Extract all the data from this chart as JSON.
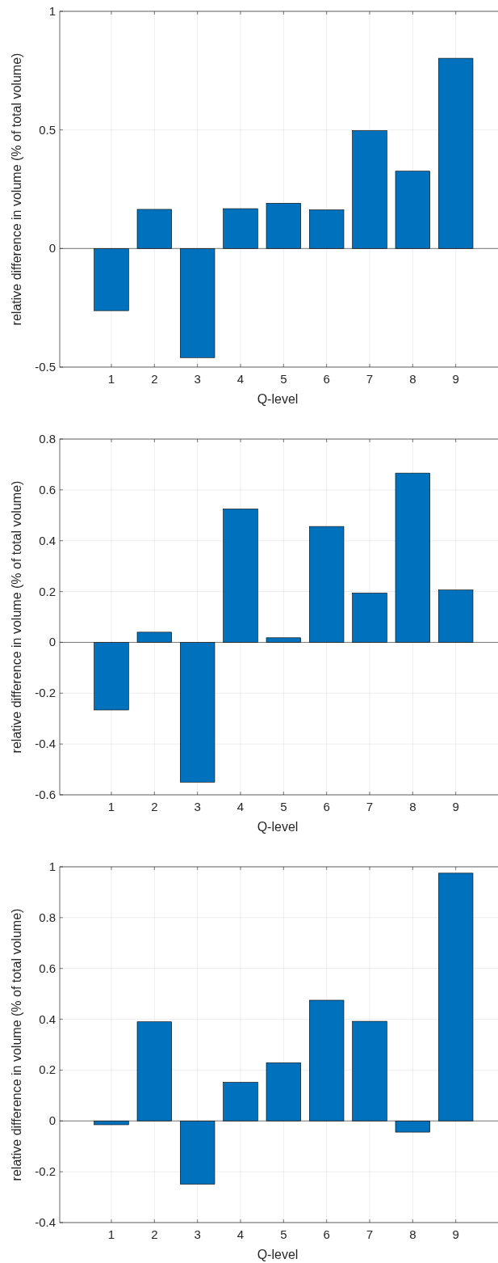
{
  "chart_data": [
    {
      "type": "bar",
      "xlabel": "Q-level",
      "ylabel": "relative difference in volume (% of total volume)",
      "x": [
        1,
        2,
        3,
        4,
        5,
        6,
        7,
        8,
        9
      ],
      "values": [
        -0.262,
        0.165,
        -0.46,
        0.168,
        0.191,
        0.163,
        0.497,
        0.326,
        0.802
      ],
      "color": "#0072bd",
      "xlim": [
        -0.2,
        10
      ],
      "xticks": [
        1,
        2,
        3,
        4,
        5,
        6,
        7,
        8,
        9
      ],
      "ylim": [
        -0.5,
        1
      ],
      "yticks": [
        -0.5,
        0,
        0.5,
        1
      ],
      "grid": true
    },
    {
      "type": "bar",
      "xlabel": "Q-level",
      "ylabel": "relative difference in volume (% of total volume)",
      "x": [
        1,
        2,
        3,
        4,
        5,
        6,
        7,
        8,
        9
      ],
      "values": [
        -0.266,
        0.04,
        -0.55,
        0.525,
        0.018,
        0.456,
        0.194,
        0.666,
        0.206
      ],
      "color": "#0072bd",
      "xlim": [
        -0.2,
        10
      ],
      "xticks": [
        1,
        2,
        3,
        4,
        5,
        6,
        7,
        8,
        9
      ],
      "ylim": [
        -0.6,
        0.8
      ],
      "yticks": [
        -0.6,
        -0.4,
        -0.2,
        0,
        0.2,
        0.4,
        0.6,
        0.8
      ],
      "grid": true
    },
    {
      "type": "bar",
      "xlabel": "Q-level",
      "ylabel": "relative difference in volume (% of total volume)",
      "x": [
        1,
        2,
        3,
        4,
        5,
        6,
        7,
        8,
        9
      ],
      "values": [
        -0.015,
        0.39,
        -0.249,
        0.152,
        0.229,
        0.475,
        0.392,
        -0.044,
        0.975
      ],
      "color": "#0072bd",
      "xlim": [
        -0.2,
        10
      ],
      "xticks": [
        1,
        2,
        3,
        4,
        5,
        6,
        7,
        8,
        9
      ],
      "ylim": [
        -0.4,
        1
      ],
      "yticks": [
        -0.4,
        -0.2,
        0,
        0.2,
        0.4,
        0.6,
        0.8,
        1
      ],
      "grid": true
    }
  ]
}
